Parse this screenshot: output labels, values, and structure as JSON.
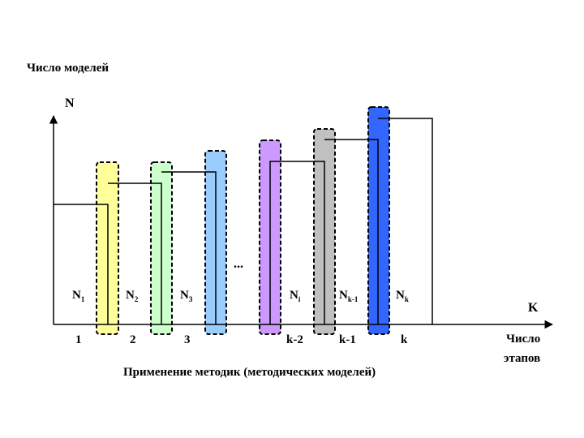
{
  "y_axis": {
    "title": "Число моделей",
    "label": "N"
  },
  "x_axis": {
    "label": "K",
    "title_line1": "Число",
    "title_line2": "этапов",
    "ticks": [
      "1",
      "2",
      "3",
      "k-2",
      "k-1",
      "k"
    ]
  },
  "caption": "Применение методик (методических моделей)",
  "ellipsis": "...",
  "columns": [
    {
      "main": "N",
      "sub": "1",
      "fill": "#ffff99"
    },
    {
      "main": "N",
      "sub": "2",
      "fill": "#ccffcc"
    },
    {
      "main": "N",
      "sub": "3",
      "fill": "#99ccff"
    },
    {
      "main": "N",
      "sub": "i",
      "fill": "#cc99ff"
    },
    {
      "main": "N",
      "sub": "k-1",
      "fill": "#c0c0c0"
    },
    {
      "main": "N",
      "sub": "k",
      "fill": "#3366ff"
    }
  ]
}
